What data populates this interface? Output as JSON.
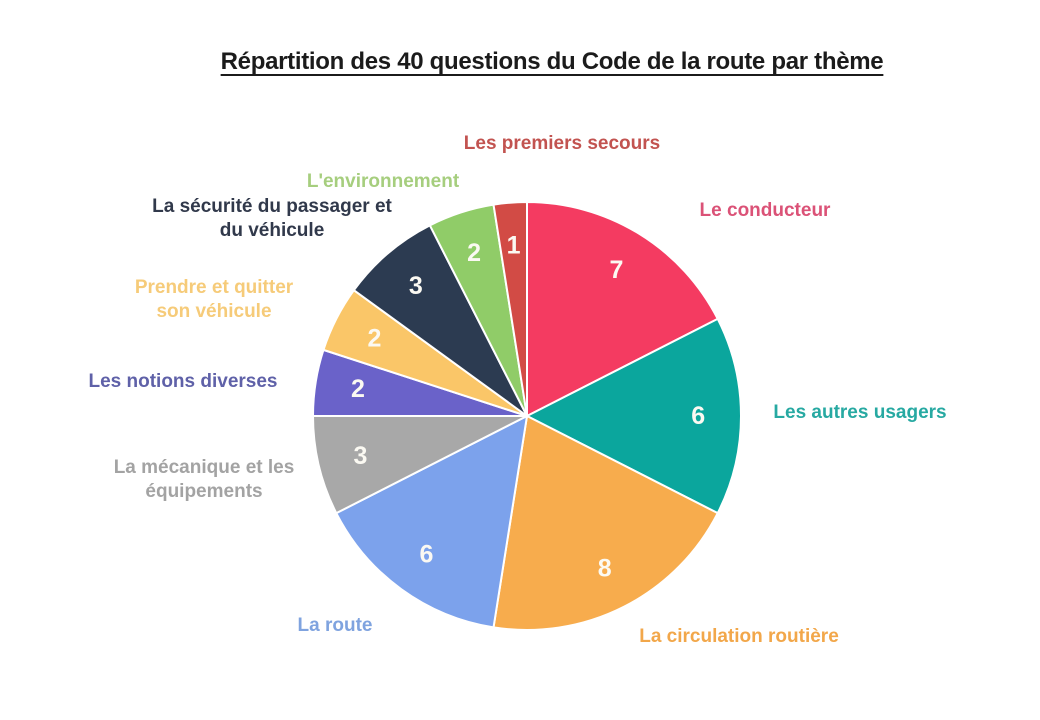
{
  "chart_data": {
    "type": "pie",
    "title": "Répartition des 40 questions du Code de la route par thème",
    "total": 40,
    "start_angle_deg": 0,
    "direction": "clockwise",
    "legend_position": "outside-callout-labels",
    "number_label_color": "#FBF9F2",
    "slice_border_color": "#FFFFFF",
    "background_color": "#FFFFFF",
    "title_color": "#1B1B1B",
    "slices": [
      {
        "label": "Le conducteur",
        "value": 7,
        "color": "#F43B61",
        "label_color": "#DB5277"
      },
      {
        "label": "Les autres usagers",
        "value": 6,
        "color": "#0BA69D",
        "label_color": "#27A9A2"
      },
      {
        "label": "La circulation routière",
        "value": 8,
        "color": "#F7AC4D",
        "label_color": "#F2A74A"
      },
      {
        "label": "La route",
        "value": 6,
        "color": "#7CA2EC",
        "label_color": "#7FA3DF"
      },
      {
        "label": "La mécanique et les équipements",
        "value": 3,
        "color": "#A8A8A8",
        "label_color": "#A3A3A3"
      },
      {
        "label": "Les notions diverses",
        "value": 2,
        "color": "#6A62C9",
        "label_color": "#5F61A8"
      },
      {
        "label": "Prendre et quitter son véhicule",
        "value": 2,
        "color": "#FAC668",
        "label_color": "#F6CB79"
      },
      {
        "label": "La sécurité du passager et du véhicule",
        "value": 3,
        "color": "#2C3B51",
        "label_color": "#31394B"
      },
      {
        "label": "L'environnement",
        "value": 2,
        "color": "#90CC68",
        "label_color": "#A6CE7E"
      },
      {
        "label": "Les premiers secours",
        "value": 1,
        "color": "#D24B45",
        "label_color": "#C25350"
      }
    ]
  }
}
